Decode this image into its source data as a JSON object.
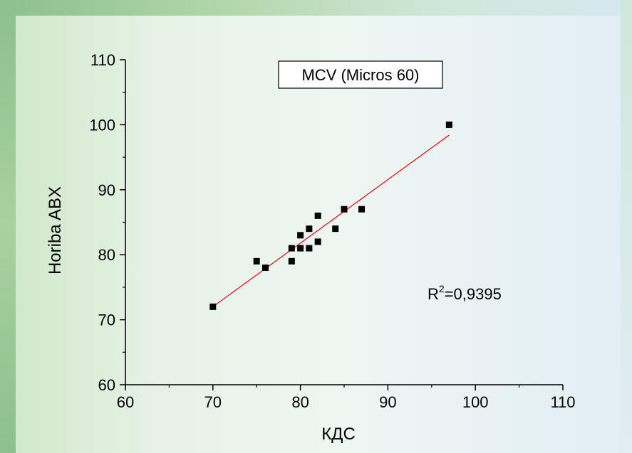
{
  "chart_data": {
    "type": "scatter",
    "title": "MCV  (Micros 60)",
    "xlabel": "КДС",
    "ylabel": "Horiba ABX",
    "xlim": [
      60,
      110
    ],
    "ylim": [
      60,
      110
    ],
    "x_ticks": [
      60,
      70,
      80,
      90,
      100,
      110
    ],
    "y_ticks": [
      60,
      70,
      80,
      90,
      100,
      110
    ],
    "series": [
      {
        "points": [
          {
            "x": 70,
            "y": 72
          },
          {
            "x": 75,
            "y": 79
          },
          {
            "x": 76,
            "y": 78
          },
          {
            "x": 79,
            "y": 79
          },
          {
            "x": 79,
            "y": 81
          },
          {
            "x": 80,
            "y": 81
          },
          {
            "x": 80,
            "y": 83
          },
          {
            "x": 81,
            "y": 81
          },
          {
            "x": 81,
            "y": 84
          },
          {
            "x": 82,
            "y": 82
          },
          {
            "x": 82,
            "y": 86
          },
          {
            "x": 84,
            "y": 84
          },
          {
            "x": 85,
            "y": 87
          },
          {
            "x": 87,
            "y": 87
          },
          {
            "x": 97,
            "y": 100
          }
        ],
        "color": "#000000"
      }
    ],
    "fit_line": {
      "x": [
        70,
        97
      ],
      "y": [
        72,
        98.4
      ],
      "color": "#e00000"
    },
    "r2_annotation": {
      "prefix": "R",
      "superscript": "2",
      "value_text": "=0,9395"
    },
    "grid": false,
    "legend_position": "top"
  }
}
